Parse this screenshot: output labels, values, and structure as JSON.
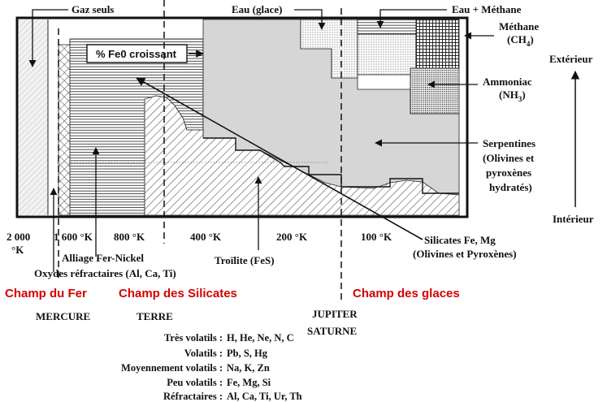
{
  "labels": {
    "gaz_seuls": "Gaz seuls",
    "eau_glace": "Eau (glace)",
    "eau_methane": "Eau + Méthane",
    "methane_1": "Méthane",
    "methane_2": "(CH",
    "methane_sub": "4",
    "methane_close": ")",
    "ammoniac_1": "Ammoniac",
    "ammoniac_2": "(NH",
    "ammoniac_sub": "3",
    "ammoniac_close": ")",
    "serpentines_1": "Serpentines",
    "serpentines_2": "(Olivines et",
    "serpentines_3": "pyroxènes",
    "serpentines_4": "hydratés)",
    "fe0": "% Fe0 croissant",
    "exterieur": "Extérieur",
    "interieur": "Intérieur",
    "alliage": "Alliage Fer-Nickel",
    "oxydes": "Oxydes réfractaires (Al, Ca, Ti)",
    "troilite": "Troïlite (FeS)",
    "silicates_1": "Silicates Fe, Mg",
    "silicates_2": "(Olivines et Pyroxènes)"
  },
  "temperatures": {
    "t2000": "2 000",
    "t2000_unit": "°K",
    "t1600": "1 600 °K",
    "t800": "800 °K",
    "t400": "400 °K",
    "t200": "200 °K",
    "t100": "100 °K"
  },
  "fields": {
    "fer": "Champ du Fer",
    "silicates": "Champ des Silicates",
    "glaces": "Champ des glaces"
  },
  "planets": {
    "mercure": "MERCURE",
    "terre": "TERRE",
    "jupiter": "JUPITER",
    "saturne": "SATURNE"
  },
  "volatility": [
    {
      "label": "Très volatils :",
      "elements": "H, He, Ne, N, C"
    },
    {
      "label": "Volatils :",
      "elements": "Pb, S, Hg"
    },
    {
      "label": "Moyennement volatils :",
      "elements": "Na, K, Zn"
    },
    {
      "label": "Peu volatils :",
      "elements": "Fe, Mg, Si"
    },
    {
      "label": "Réfractaires :",
      "elements": "Al, Ca, Ti, Ur, Th"
    }
  ],
  "colors": {
    "red_label": "#d40000",
    "serpentine_fill": "#d4d4d4",
    "frame": "#111111"
  }
}
